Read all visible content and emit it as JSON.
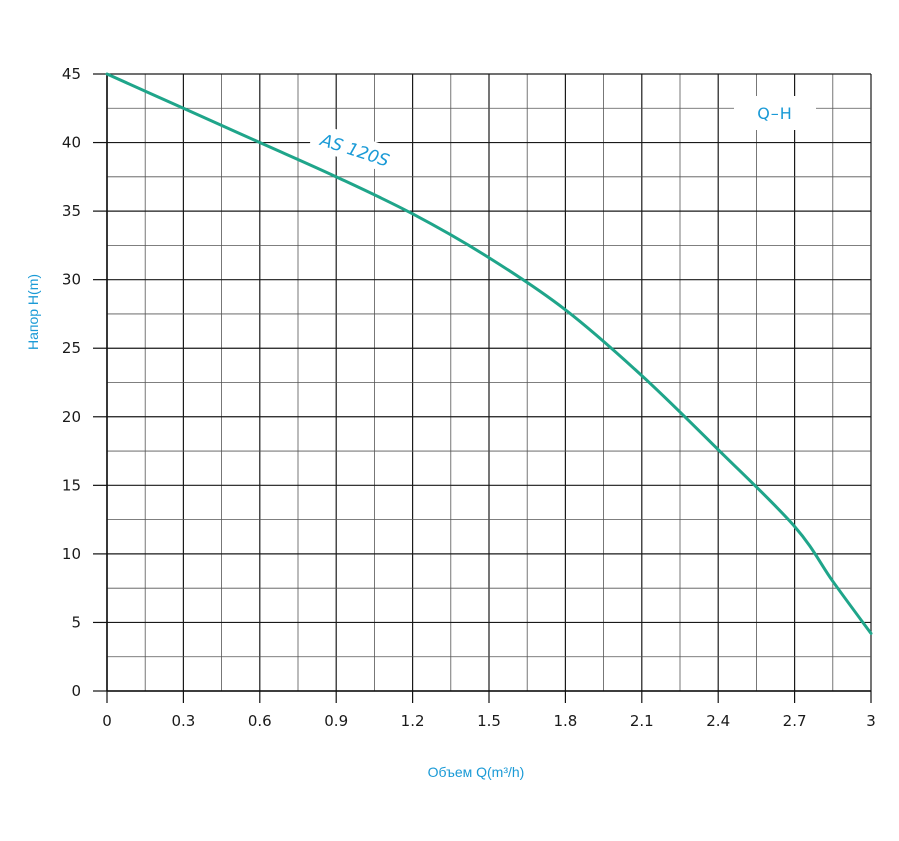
{
  "chart_data": {
    "type": "line",
    "title": "",
    "xlabel": "Объем Q(m³/h)",
    "ylabel": "Напор H(m)",
    "xlim": [
      0,
      3
    ],
    "ylim": [
      0,
      45
    ],
    "x_ticks": [
      "0",
      "0.3",
      "0.6",
      "0.9",
      "1.2",
      "1.5",
      "1.8",
      "2.1",
      "2.4",
      "2.7",
      "3"
    ],
    "y_ticks": [
      "0",
      "5",
      "10",
      "15",
      "20",
      "25",
      "30",
      "35",
      "40",
      "45"
    ],
    "grid": true,
    "legend": "Q–H",
    "series": [
      {
        "name": "AS 120S",
        "color": "#1fa58a",
        "x": [
          0,
          0.3,
          0.6,
          0.9,
          1.2,
          1.5,
          1.8,
          2.1,
          2.4,
          2.7,
          2.85,
          3.0
        ],
        "y": [
          45,
          42.5,
          40,
          37.5,
          34.8,
          31.6,
          27.8,
          23.0,
          17.6,
          12.0,
          8.0,
          4.2
        ]
      }
    ]
  }
}
